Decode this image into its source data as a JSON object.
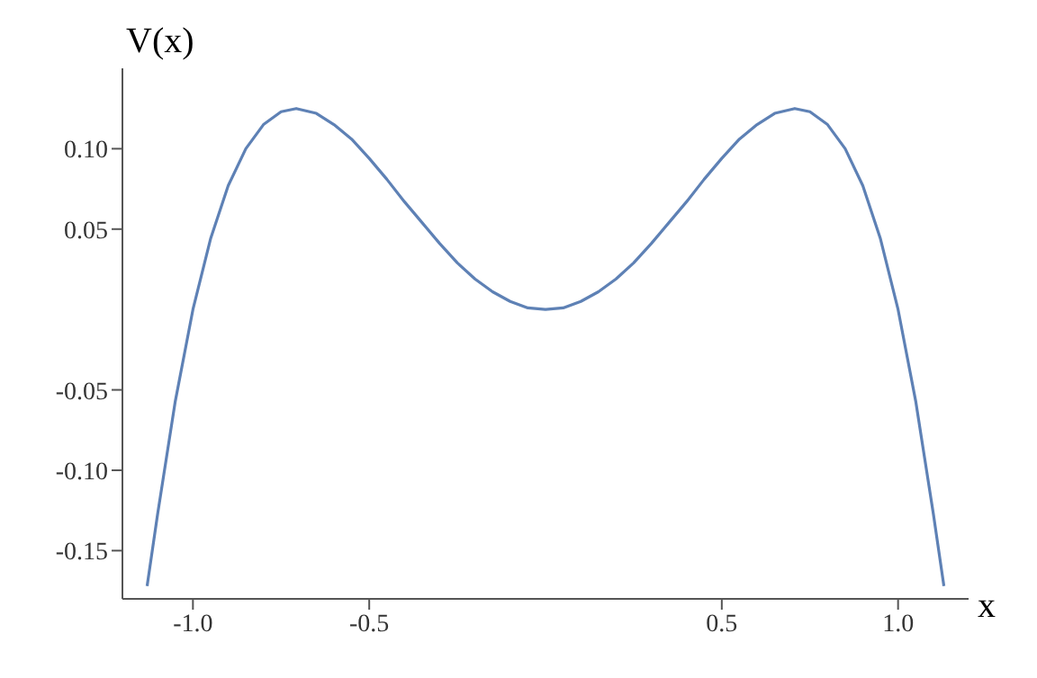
{
  "chart_data": {
    "type": "line",
    "xlabel": "x",
    "ylabel": "V(x)",
    "x": [
      -1.13,
      -1.1,
      -1.05,
      -1.0,
      -0.95,
      -0.9,
      -0.85,
      -0.8,
      -0.75,
      -0.707,
      -0.65,
      -0.6,
      -0.55,
      -0.5,
      -0.45,
      -0.4,
      -0.35,
      -0.3,
      -0.25,
      -0.2,
      -0.15,
      -0.1,
      -0.05,
      0,
      0.05,
      0.1,
      0.15,
      0.2,
      0.25,
      0.3,
      0.35,
      0.4,
      0.45,
      0.5,
      0.55,
      0.6,
      0.65,
      0.707,
      0.75,
      0.8,
      0.85,
      0.9,
      0.95,
      1.0,
      1.05,
      1.1,
      1.13
    ],
    "series": [
      {
        "color": "#5e81b5",
        "values": [
          -0.172,
          -0.127,
          -0.057,
          0,
          0.044,
          0.077,
          0.1,
          0.115,
          0.123,
          0.125,
          0.122,
          0.115,
          0.106,
          0.094,
          0.081,
          0.067,
          0.054,
          0.041,
          0.029,
          0.019,
          0.011,
          0.005,
          0.001,
          0,
          0.001,
          0.005,
          0.011,
          0.019,
          0.029,
          0.041,
          0.054,
          0.067,
          0.081,
          0.094,
          0.106,
          0.115,
          0.122,
          0.125,
          0.123,
          0.115,
          0.1,
          0.077,
          0.044,
          0,
          -0.057,
          -0.127,
          -0.172
        ]
      }
    ],
    "xlim": [
      -1.2,
      1.2
    ],
    "ylim": [
      -0.18,
      0.15
    ],
    "xticks": [
      {
        "value": -1.0,
        "label": "-1.0"
      },
      {
        "value": -0.5,
        "label": "-0.5"
      },
      {
        "value": 0.5,
        "label": "0.5"
      },
      {
        "value": 1.0,
        "label": "1.0"
      }
    ],
    "yticks": [
      {
        "value": -0.15,
        "label": "-0.15"
      },
      {
        "value": -0.1,
        "label": "-0.10"
      },
      {
        "value": -0.05,
        "label": "-0.05"
      },
      {
        "value": 0.05,
        "label": "0.05"
      },
      {
        "value": 0.1,
        "label": "0.10"
      }
    ],
    "marker": "none",
    "line_style": "solid"
  }
}
